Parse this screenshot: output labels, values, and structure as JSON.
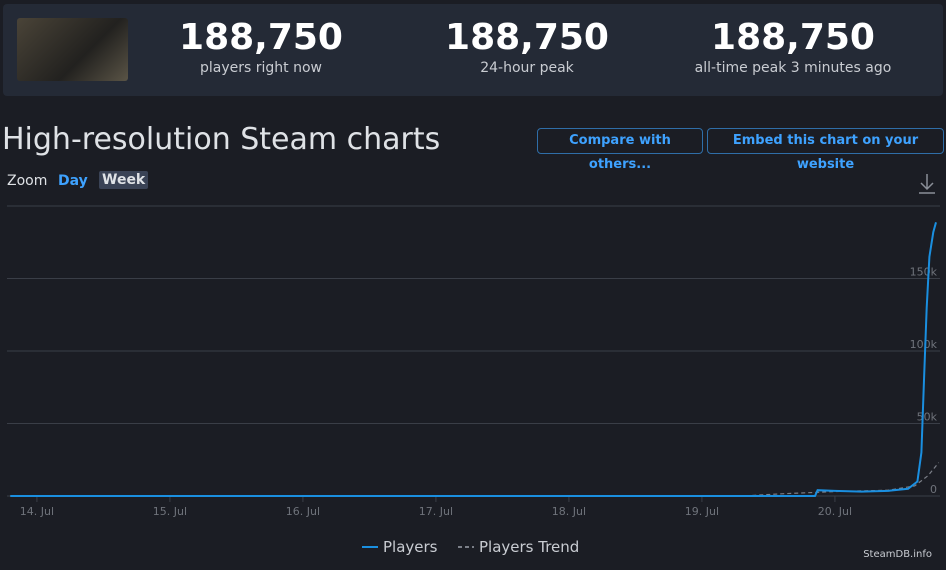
{
  "header": {
    "stats": [
      {
        "value": "188,750",
        "label": "players right now"
      },
      {
        "value": "188,750",
        "label": "24-hour peak"
      },
      {
        "value": "188,750",
        "label": "all-time peak 3 minutes ago"
      }
    ]
  },
  "section": {
    "title": "High-resolution Steam charts",
    "buttons": [
      "Compare with others...",
      "Embed this chart on your website"
    ],
    "zoom": {
      "label": "Zoom",
      "options": [
        "Day",
        "Week"
      ]
    }
  },
  "chart_data": {
    "type": "line",
    "xlim": [
      -0.24,
      6.79
    ],
    "xticks": [
      {
        "value": 0,
        "label": "14. Jul"
      },
      {
        "value": 1,
        "label": "15. Jul"
      },
      {
        "value": 2,
        "label": "16. Jul"
      },
      {
        "value": 3,
        "label": "17. Jul"
      },
      {
        "value": 4,
        "label": "18. Jul"
      },
      {
        "value": 5,
        "label": "19. Jul"
      },
      {
        "value": 6,
        "label": "20. Jul"
      }
    ],
    "ylim": [
      0,
      200000
    ],
    "yticks": [
      0,
      {
        "value": 50000,
        "label": "50k"
      },
      {
        "value": 100000,
        "label": "100k"
      },
      {
        "value": 150000,
        "label": "150k"
      },
      {
        "value": 200000,
        "label": ""
      }
    ],
    "grid": true,
    "series": [
      {
        "name": "Players",
        "color": "#1a8fe0",
        "dashed": false,
        "x": [
          -0.2,
          5.85,
          5.87,
          6.0,
          6.2,
          6.4,
          6.55,
          6.62,
          6.65,
          6.67,
          6.69,
          6.71,
          6.74,
          6.76
        ],
        "values": [
          0,
          0,
          4000,
          3500,
          3000,
          3500,
          5000,
          10000,
          30000,
          80000,
          130000,
          165000,
          182000,
          188750
        ]
      },
      {
        "name": "Players Trend",
        "color": "#7b7f88",
        "dashed": true,
        "x": [
          -0.2,
          5.3,
          5.6,
          6.0,
          6.4,
          6.6,
          6.7,
          6.78
        ],
        "values": [
          0,
          0,
          1500,
          3000,
          4000,
          7000,
          14000,
          23000
        ]
      }
    ],
    "credit": "SteamDB.info"
  }
}
